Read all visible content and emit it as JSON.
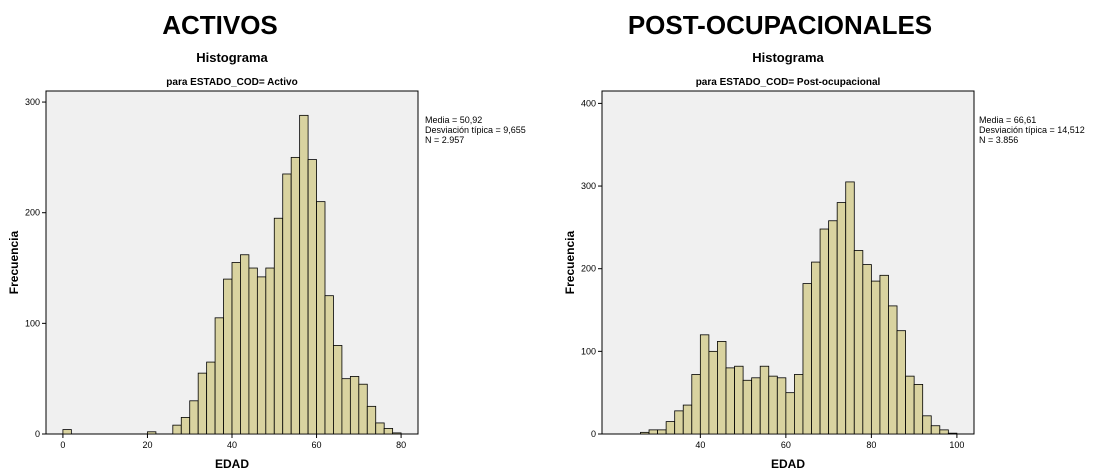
{
  "colors": {
    "plot_bg": "#f0f0f0",
    "bar_fill": "#d9d3a0",
    "bar_stroke": "#000000"
  },
  "panels": [
    {
      "heading": "ACTIVOS",
      "stats": {
        "mean": "Media = 50,92",
        "sd": "Desviación típica = 9,655",
        "n": "N = 2.957"
      },
      "chart_data": {
        "type": "bar",
        "title": "Histograma",
        "subtitle": "para ESTADO_COD= Activo",
        "xlabel": "EDAD",
        "ylabel": "Frecuencia",
        "xlim": [
          -4,
          84
        ],
        "ylim": [
          0,
          310
        ],
        "xticks": [
          0,
          20,
          40,
          60,
          80
        ],
        "yticks": [
          0,
          100,
          200,
          300
        ],
        "bin_width": 2,
        "bins": [
          {
            "x0": 0,
            "count": 4
          },
          {
            "x0": 20,
            "count": 2
          },
          {
            "x0": 26,
            "count": 8
          },
          {
            "x0": 28,
            "count": 15
          },
          {
            "x0": 30,
            "count": 30
          },
          {
            "x0": 32,
            "count": 55
          },
          {
            "x0": 34,
            "count": 65
          },
          {
            "x0": 36,
            "count": 105
          },
          {
            "x0": 38,
            "count": 140
          },
          {
            "x0": 40,
            "count": 155
          },
          {
            "x0": 42,
            "count": 162
          },
          {
            "x0": 44,
            "count": 150
          },
          {
            "x0": 46,
            "count": 142
          },
          {
            "x0": 48,
            "count": 150
          },
          {
            "x0": 50,
            "count": 195
          },
          {
            "x0": 52,
            "count": 235
          },
          {
            "x0": 54,
            "count": 250
          },
          {
            "x0": 56,
            "count": 288
          },
          {
            "x0": 58,
            "count": 248
          },
          {
            "x0": 60,
            "count": 210
          },
          {
            "x0": 62,
            "count": 125
          },
          {
            "x0": 64,
            "count": 80
          },
          {
            "x0": 66,
            "count": 50
          },
          {
            "x0": 68,
            "count": 52
          },
          {
            "x0": 70,
            "count": 45
          },
          {
            "x0": 72,
            "count": 25
          },
          {
            "x0": 74,
            "count": 10
          },
          {
            "x0": 76,
            "count": 5
          },
          {
            "x0": 78,
            "count": 1
          }
        ]
      }
    },
    {
      "heading": "POST-OCUPACIONALES",
      "stats": {
        "mean": "Media = 66,61",
        "sd": "Desviación típica = 14,512",
        "n": "N = 3.856"
      },
      "chart_data": {
        "type": "bar",
        "title": "Histograma",
        "subtitle": "para ESTADO_COD= Post-ocupacional",
        "xlabel": "EDAD",
        "ylabel": "Frecuencia",
        "xlim": [
          17,
          104
        ],
        "ylim": [
          0,
          415
        ],
        "xticks": [
          40,
          60,
          80,
          100
        ],
        "yticks": [
          0,
          100,
          200,
          300,
          400
        ],
        "bin_width": 2,
        "bins": [
          {
            "x0": 26,
            "count": 2
          },
          {
            "x0": 28,
            "count": 5
          },
          {
            "x0": 30,
            "count": 5
          },
          {
            "x0": 32,
            "count": 15
          },
          {
            "x0": 34,
            "count": 28
          },
          {
            "x0": 36,
            "count": 35
          },
          {
            "x0": 38,
            "count": 72
          },
          {
            "x0": 40,
            "count": 120
          },
          {
            "x0": 42,
            "count": 100
          },
          {
            "x0": 44,
            "count": 112
          },
          {
            "x0": 46,
            "count": 80
          },
          {
            "x0": 48,
            "count": 82
          },
          {
            "x0": 50,
            "count": 65
          },
          {
            "x0": 52,
            "count": 68
          },
          {
            "x0": 54,
            "count": 82
          },
          {
            "x0": 56,
            "count": 70
          },
          {
            "x0": 58,
            "count": 68
          },
          {
            "x0": 60,
            "count": 50
          },
          {
            "x0": 62,
            "count": 72
          },
          {
            "x0": 64,
            "count": 182
          },
          {
            "x0": 66,
            "count": 208
          },
          {
            "x0": 68,
            "count": 248
          },
          {
            "x0": 70,
            "count": 258
          },
          {
            "x0": 72,
            "count": 280
          },
          {
            "x0": 74,
            "count": 305
          },
          {
            "x0": 76,
            "count": 222
          },
          {
            "x0": 78,
            "count": 205
          },
          {
            "x0": 80,
            "count": 185
          },
          {
            "x0": 82,
            "count": 192
          },
          {
            "x0": 84,
            "count": 155
          },
          {
            "x0": 86,
            "count": 125
          },
          {
            "x0": 88,
            "count": 70
          },
          {
            "x0": 90,
            "count": 60
          },
          {
            "x0": 92,
            "count": 22
          },
          {
            "x0": 94,
            "count": 10
          },
          {
            "x0": 96,
            "count": 5
          },
          {
            "x0": 98,
            "count": 1
          }
        ]
      }
    }
  ]
}
